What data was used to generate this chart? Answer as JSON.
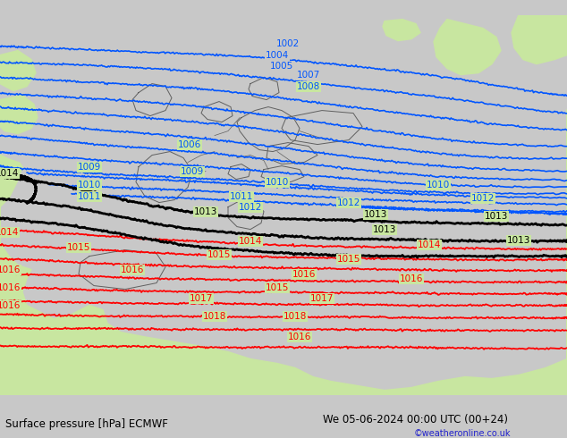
{
  "title_left": "Surface pressure [hPa] ECMWF",
  "title_right": "We 05-06-2024 00:00 UTC (00+24)",
  "watermark": "©weatheronline.co.uk",
  "bg_color": "#c8c8c8",
  "land_green": "#c8e6a0",
  "land_gray": "#c0c0c0",
  "sea_gray": "#c8c8c8",
  "blue": "#0055ff",
  "black": "#000000",
  "red": "#ff0000",
  "border_color": "#606060",
  "fig_width": 6.34,
  "fig_height": 4.9,
  "dpi": 100,
  "bar_color": "#f0f0ee",
  "title_fontsize": 8.5,
  "watermark_color": "#2222cc",
  "watermark_fontsize": 7.0
}
